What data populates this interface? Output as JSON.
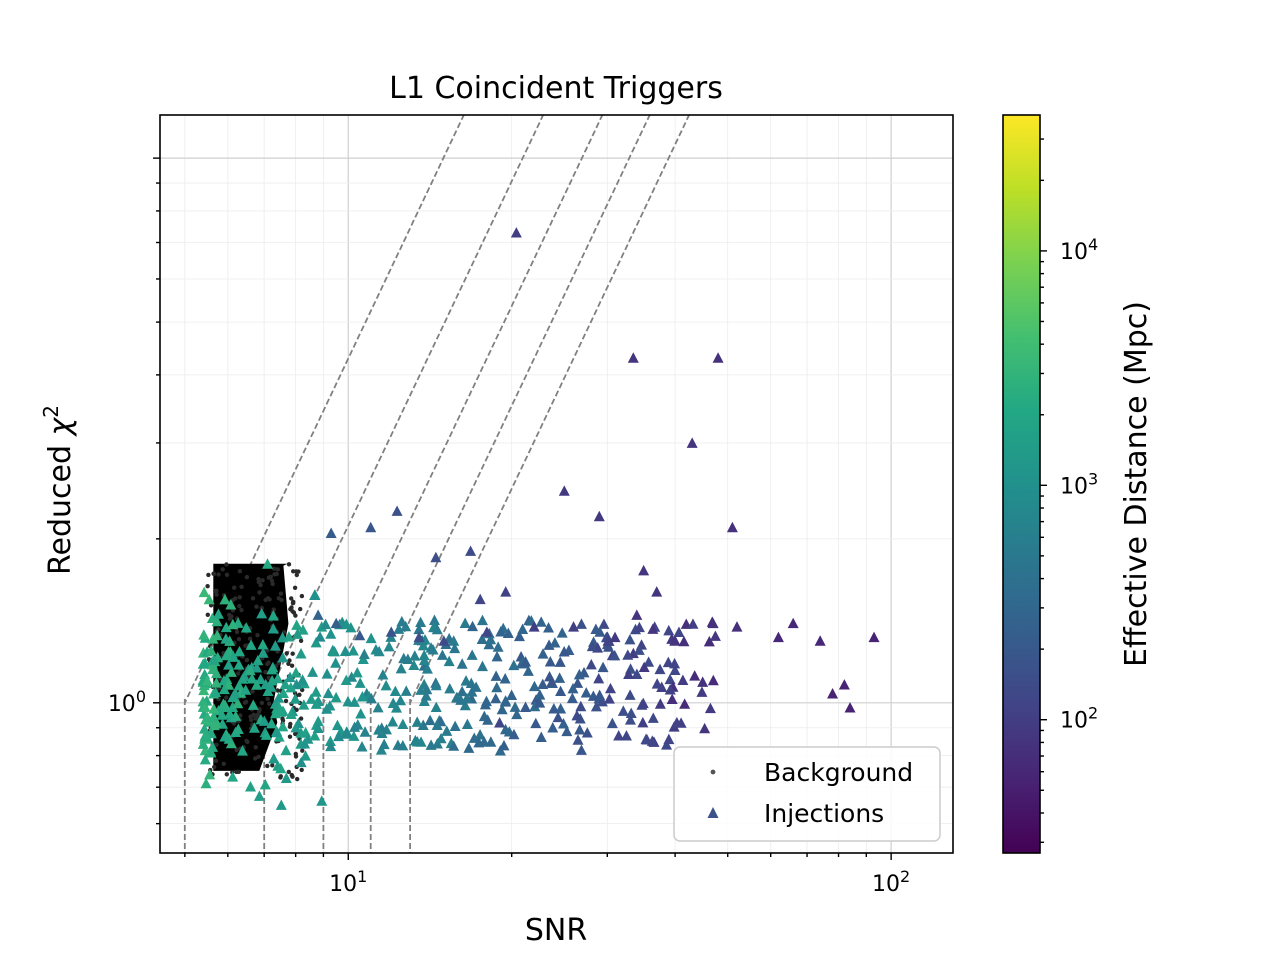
{
  "chart_data": {
    "type": "scatter",
    "title": "L1 Coincident Triggers",
    "xlabel": "SNR",
    "ylabel_text": "Reduced ",
    "ylabel_symbol": "χ",
    "ylabel_sup": "2",
    "xscale": "log",
    "yscale": "log",
    "xlim": [
      4.5,
      130
    ],
    "ylim": [
      0.53,
      12
    ],
    "x_tick_labels": [
      {
        "base": "10",
        "exp": "1",
        "value": 10
      },
      {
        "base": "10",
        "exp": "2",
        "value": 100
      }
    ],
    "y_tick_labels": [
      {
        "base": "10",
        "exp": "0",
        "value": 1
      }
    ],
    "grid": true,
    "legend": {
      "placement": "lower-right",
      "entries": [
        {
          "label": "Background",
          "marker": "dot",
          "color": "#555555"
        },
        {
          "label": "Injections",
          "marker": "triangle",
          "color": "#3b528b"
        }
      ]
    },
    "colorbar": {
      "label": "Effective Distance (Mpc)",
      "scale": "log",
      "range": [
        27,
        38000
      ],
      "tick_labels": [
        {
          "base": "10",
          "exp": "2",
          "value": 100
        },
        {
          "base": "10",
          "exp": "3",
          "value": 1000
        },
        {
          "base": "10",
          "exp": "4",
          "value": 10000
        }
      ],
      "colormap": "viridis"
    },
    "threshold_lines": [
      {
        "snr_min": 5.0
      },
      {
        "snr_min": 7.0
      },
      {
        "snr_min": 9.0
      },
      {
        "snr_min": 11.0
      },
      {
        "snr_min": 13.0
      }
    ],
    "background_region": {
      "snr_range": [
        5.5,
        9.0
      ],
      "reduced_chisq_range": [
        0.75,
        1.8
      ]
    },
    "series": [
      {
        "name": "Injections",
        "marker": "triangle",
        "points": [
          {
            "x": 20.4,
            "y": 7.3,
            "d": 100
          },
          {
            "x": 33.5,
            "y": 4.3,
            "d": 80
          },
          {
            "x": 48.0,
            "y": 4.3,
            "d": 75
          },
          {
            "x": 43.0,
            "y": 3.0,
            "d": 80
          },
          {
            "x": 25.0,
            "y": 2.45,
            "d": 90
          },
          {
            "x": 29.0,
            "y": 2.2,
            "d": 90
          },
          {
            "x": 51.0,
            "y": 2.1,
            "d": 75
          },
          {
            "x": 12.3,
            "y": 2.25,
            "d": 160
          },
          {
            "x": 11.0,
            "y": 2.1,
            "d": 190
          },
          {
            "x": 9.3,
            "y": 2.05,
            "d": 220
          },
          {
            "x": 14.5,
            "y": 1.85,
            "d": 150
          },
          {
            "x": 16.8,
            "y": 1.9,
            "d": 140
          },
          {
            "x": 7.1,
            "y": 1.8,
            "d": 2200
          },
          {
            "x": 35.0,
            "y": 1.75,
            "d": 80
          },
          {
            "x": 37.0,
            "y": 1.6,
            "d": 80
          },
          {
            "x": 19.5,
            "y": 1.6,
            "d": 110
          },
          {
            "x": 17.5,
            "y": 1.55,
            "d": 120
          },
          {
            "x": 34.0,
            "y": 1.45,
            "d": 80
          },
          {
            "x": 47.0,
            "y": 1.4,
            "d": 75
          },
          {
            "x": 52.0,
            "y": 1.38,
            "d": 72
          },
          {
            "x": 66.0,
            "y": 1.4,
            "d": 60
          },
          {
            "x": 62.0,
            "y": 1.32,
            "d": 60
          },
          {
            "x": 74.0,
            "y": 1.3,
            "d": 60
          },
          {
            "x": 93.0,
            "y": 1.32,
            "d": 55
          },
          {
            "x": 82.0,
            "y": 1.08,
            "d": 55
          },
          {
            "x": 78.0,
            "y": 1.04,
            "d": 55
          },
          {
            "x": 84.0,
            "y": 0.98,
            "d": 55
          },
          {
            "x": 26.0,
            "y": 1.38,
            "d": 100
          },
          {
            "x": 31.0,
            "y": 1.32,
            "d": 90
          },
          {
            "x": 40.0,
            "y": 1.3,
            "d": 80
          },
          {
            "x": 22.0,
            "y": 1.38,
            "d": 100
          },
          {
            "x": 18.0,
            "y": 1.35,
            "d": 120
          },
          {
            "x": 15.0,
            "y": 1.3,
            "d": 140
          },
          {
            "x": 13.5,
            "y": 1.32,
            "d": 150
          },
          {
            "x": 12.0,
            "y": 1.35,
            "d": 170
          },
          {
            "x": 10.5,
            "y": 1.33,
            "d": 200
          },
          {
            "x": 9.5,
            "y": 1.4,
            "d": 240
          },
          {
            "x": 8.8,
            "y": 1.45,
            "d": 280
          },
          {
            "x": 19.0,
            "y": 0.92,
            "d": 120
          }
        ]
      }
    ]
  }
}
